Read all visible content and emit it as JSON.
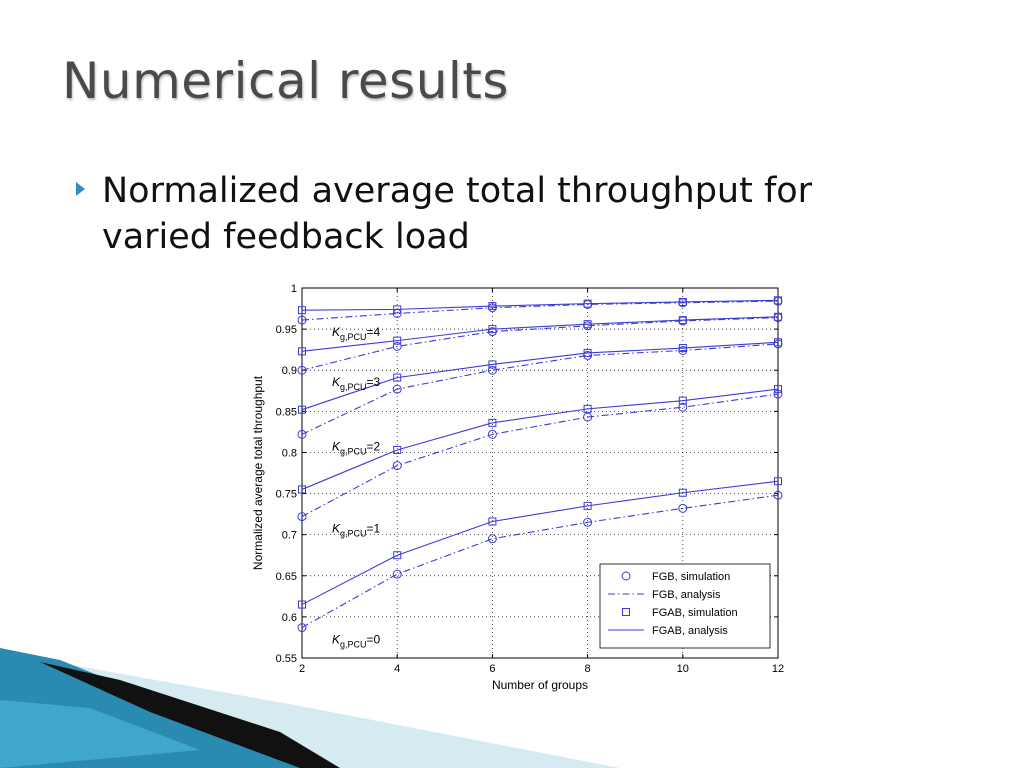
{
  "slide": {
    "title": "Numerical results",
    "bullet": "Normalized average total throughput for varied feedback load"
  },
  "colors": {
    "series": "#3b3bd6",
    "title": "#4a4a4a",
    "bullet": "#2f8fbf",
    "deco_teal": "#2a8ab0",
    "deco_light": "#cfe6ef",
    "deco_dark": "#111111"
  },
  "chart_data": {
    "type": "line",
    "title": "",
    "xlabel": "Number of groups",
    "ylabel": "Normalized average total throughput",
    "xlim": [
      2,
      12
    ],
    "ylim": [
      0.55,
      1
    ],
    "xticks": [
      2,
      4,
      6,
      8,
      10,
      12
    ],
    "yticks": [
      0.55,
      0.6,
      0.65,
      0.7,
      0.75,
      0.8,
      0.85,
      0.9,
      0.95,
      1
    ],
    "ytick_labels": [
      "0.55",
      "0.6",
      "0.65",
      "0.7",
      "0.75",
      "0.8",
      "0.85",
      "0.9",
      "0.95",
      "1"
    ],
    "grid": true,
    "legend_position": "bottom-right",
    "x": [
      2,
      4,
      6,
      8,
      10,
      12
    ],
    "groups": [
      {
        "label_main": "K",
        "label_sub": "g,PCU",
        "label_value": "=0",
        "fgb": [
          0.587,
          0.652,
          0.695,
          0.715,
          0.732,
          0.748
        ],
        "fgab": [
          0.615,
          0.675,
          0.716,
          0.735,
          0.751,
          0.765
        ]
      },
      {
        "label_main": "K",
        "label_sub": "g,PCU",
        "label_value": "=1",
        "fgb": [
          0.722,
          0.784,
          0.822,
          0.843,
          0.855,
          0.871
        ],
        "fgab": [
          0.755,
          0.803,
          0.836,
          0.853,
          0.863,
          0.877
        ]
      },
      {
        "label_main": "K",
        "label_sub": "g,PCU",
        "label_value": "=2",
        "fgb": [
          0.822,
          0.877,
          0.9,
          0.918,
          0.924,
          0.932
        ],
        "fgab": [
          0.852,
          0.891,
          0.907,
          0.921,
          0.927,
          0.934
        ]
      },
      {
        "label_main": "K",
        "label_sub": "g,PCU",
        "label_value": "=3",
        "fgb": [
          0.9,
          0.929,
          0.947,
          0.954,
          0.96,
          0.964
        ],
        "fgab": [
          0.923,
          0.936,
          0.95,
          0.956,
          0.961,
          0.965
        ]
      },
      {
        "label_main": "K",
        "label_sub": "g,PCU",
        "label_value": "=4",
        "fgb": [
          0.961,
          0.969,
          0.976,
          0.98,
          0.982,
          0.984
        ],
        "fgab": [
          0.973,
          0.974,
          0.978,
          0.981,
          0.983,
          0.985
        ]
      }
    ],
    "legend": [
      {
        "label": "FGB, simulation",
        "marker": "circle",
        "line": "none"
      },
      {
        "label": "FGB, analysis",
        "marker": "none",
        "line": "dashdot"
      },
      {
        "label": "FGAB, simulation",
        "marker": "square",
        "line": "none"
      },
      {
        "label": "FGAB, analysis",
        "marker": "none",
        "line": "solid"
      }
    ]
  }
}
